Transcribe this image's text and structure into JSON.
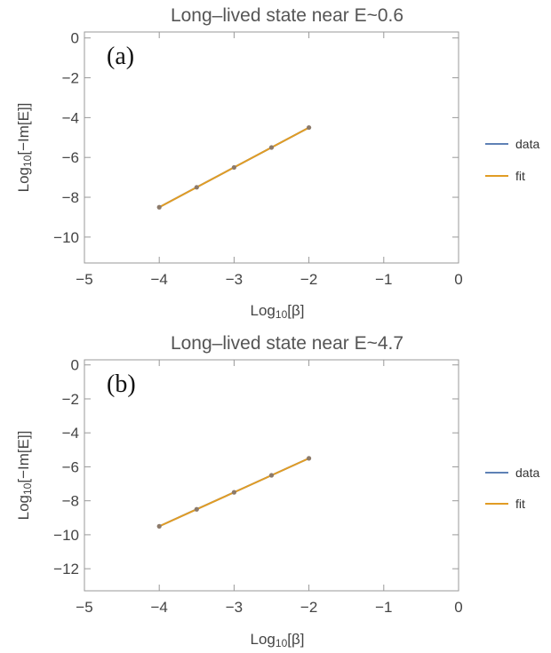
{
  "chart_data": [
    {
      "type": "line",
      "panel_label": "(a)",
      "title": "Long–lived state near E~0.6",
      "xlabel": {
        "base": "Log",
        "sub": "10",
        "arg": "[β]"
      },
      "ylabel": {
        "base": "Log",
        "sub": "10",
        "arg": "[−Im[E]]"
      },
      "xlim": [
        -5,
        0
      ],
      "ylim": [
        -11.3,
        0.3
      ],
      "xticks": [
        -5,
        -4,
        -3,
        -2,
        -1,
        0
      ],
      "yticks": [
        0,
        -2,
        -4,
        -6,
        -8,
        -10
      ],
      "series": [
        {
          "name": "data",
          "color": "#5e81b5",
          "x": [
            -4,
            -3.5,
            -3,
            -2.5,
            -2
          ],
          "y": [
            -8.5,
            -7.5,
            -6.5,
            -5.5,
            -4.5
          ],
          "markers": true
        },
        {
          "name": "fit",
          "color": "#e19c24",
          "x": [
            -4,
            -2
          ],
          "y": [
            -8.5,
            -4.5
          ],
          "markers": false
        }
      ],
      "legend_position": "right"
    },
    {
      "type": "line",
      "panel_label": "(b)",
      "title": "Long–lived state near E~4.7",
      "xlabel": {
        "base": "Log",
        "sub": "10",
        "arg": "[β]"
      },
      "ylabel": {
        "base": "Log",
        "sub": "10",
        "arg": "[−Im[E]]"
      },
      "xlim": [
        -5,
        0
      ],
      "ylim": [
        -13.3,
        0.3
      ],
      "xticks": [
        -5,
        -4,
        -3,
        -2,
        -1,
        0
      ],
      "yticks": [
        0,
        -2,
        -4,
        -6,
        -8,
        -10,
        -12
      ],
      "series": [
        {
          "name": "data",
          "color": "#5e81b5",
          "x": [
            -4,
            -3.5,
            -3,
            -2.5,
            -2
          ],
          "y": [
            -9.5,
            -8.5,
            -7.5,
            -6.5,
            -5.5
          ],
          "markers": true
        },
        {
          "name": "fit",
          "color": "#e19c24",
          "x": [
            -4,
            -2
          ],
          "y": [
            -9.5,
            -5.5
          ],
          "markers": false
        }
      ],
      "legend_position": "right"
    }
  ]
}
